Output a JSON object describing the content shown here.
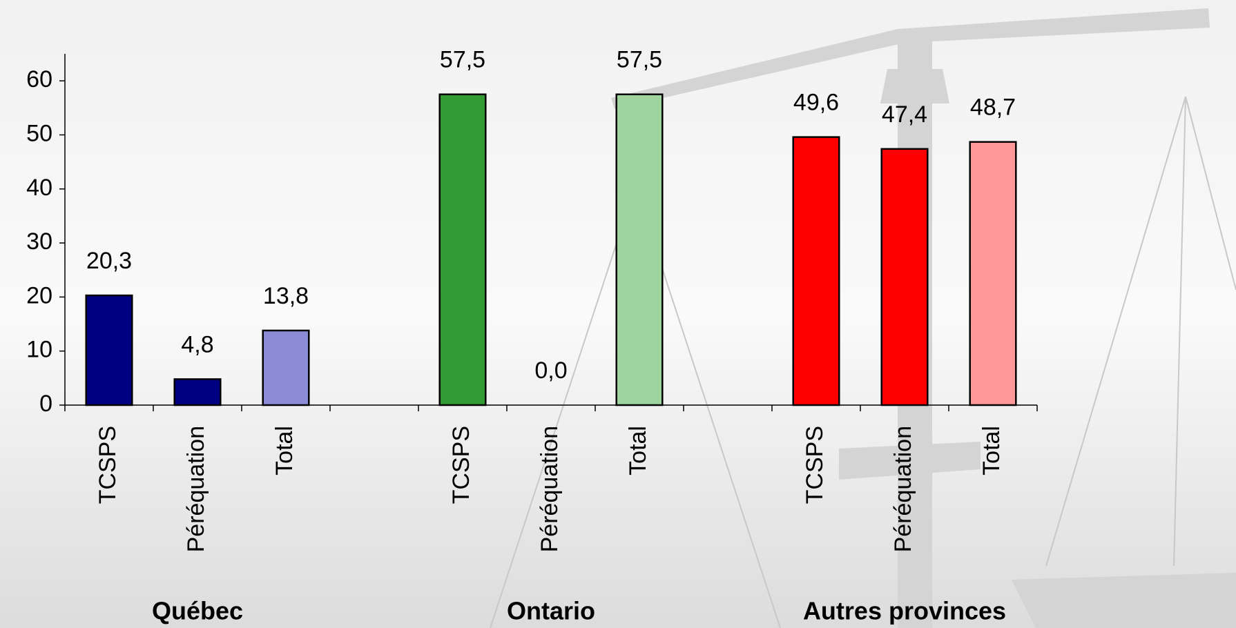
{
  "chart_data": {
    "type": "bar",
    "categories": [
      "TCSPS",
      "Péréquation",
      "Total",
      null,
      "TCSPS",
      "Péréquation",
      "Total",
      null,
      "TCSPS",
      "Péréquation",
      "Total"
    ],
    "values": [
      20.3,
      4.8,
      13.8,
      null,
      57.5,
      0.0,
      57.5,
      null,
      49.6,
      47.4,
      48.7
    ],
    "value_labels": [
      "20,3",
      "4,8",
      "13,8",
      null,
      "57,5",
      "0,0",
      "57,5",
      null,
      "49,6",
      "47,4",
      "48,7"
    ],
    "colors": [
      "#000080",
      "#000080",
      "#8c8cd6",
      null,
      "#339933",
      "#339933",
      "#9fd49f",
      null,
      "#ff0000",
      "#ff0000",
      "#ff9999"
    ],
    "group_labels": [
      "Québec",
      "Ontario",
      "Autres provinces"
    ],
    "ylim": [
      0,
      65
    ],
    "yticks": [
      0,
      10,
      20,
      30,
      40,
      50,
      60
    ],
    "grid": false
  }
}
